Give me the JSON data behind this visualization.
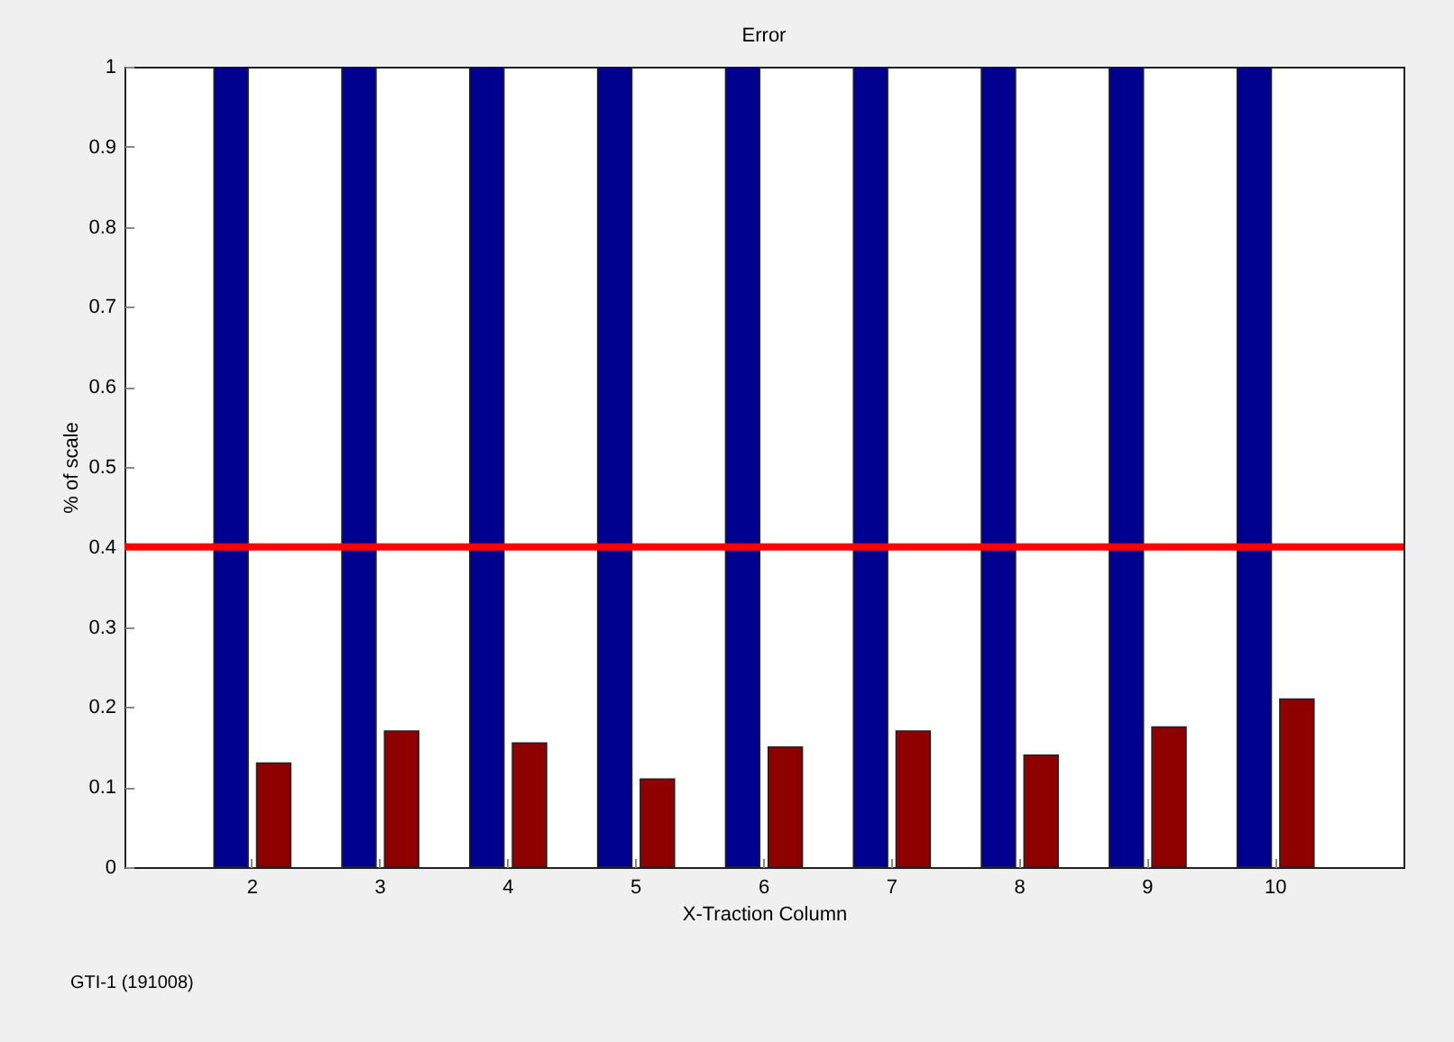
{
  "chart_data": {
    "type": "bar",
    "title": "Error",
    "xlabel": "X-Traction Column",
    "ylabel": "% of scale",
    "categories": [
      "2",
      "3",
      "4",
      "5",
      "6",
      "7",
      "8",
      "9",
      "10"
    ],
    "series": [
      {
        "color": "#00008f",
        "values": [
          1,
          1,
          1,
          1,
          1,
          1,
          1,
          1,
          1
        ]
      },
      {
        "color": "#8f0000",
        "values": [
          0.13,
          0.17,
          0.155,
          0.11,
          0.15,
          0.17,
          0.14,
          0.175,
          0.21
        ]
      }
    ],
    "ylim": [
      0,
      1
    ],
    "yticks": [
      0,
      0.1,
      0.2,
      0.3,
      0.4,
      0.5,
      0.6,
      0.7,
      0.8,
      0.9,
      1
    ],
    "grid": false,
    "legend": false,
    "ref_lines": [
      {
        "axis": "y",
        "value": 0.4,
        "color": "#ff0000"
      }
    ],
    "annotations": [
      "GTI-1 (191008)"
    ]
  }
}
